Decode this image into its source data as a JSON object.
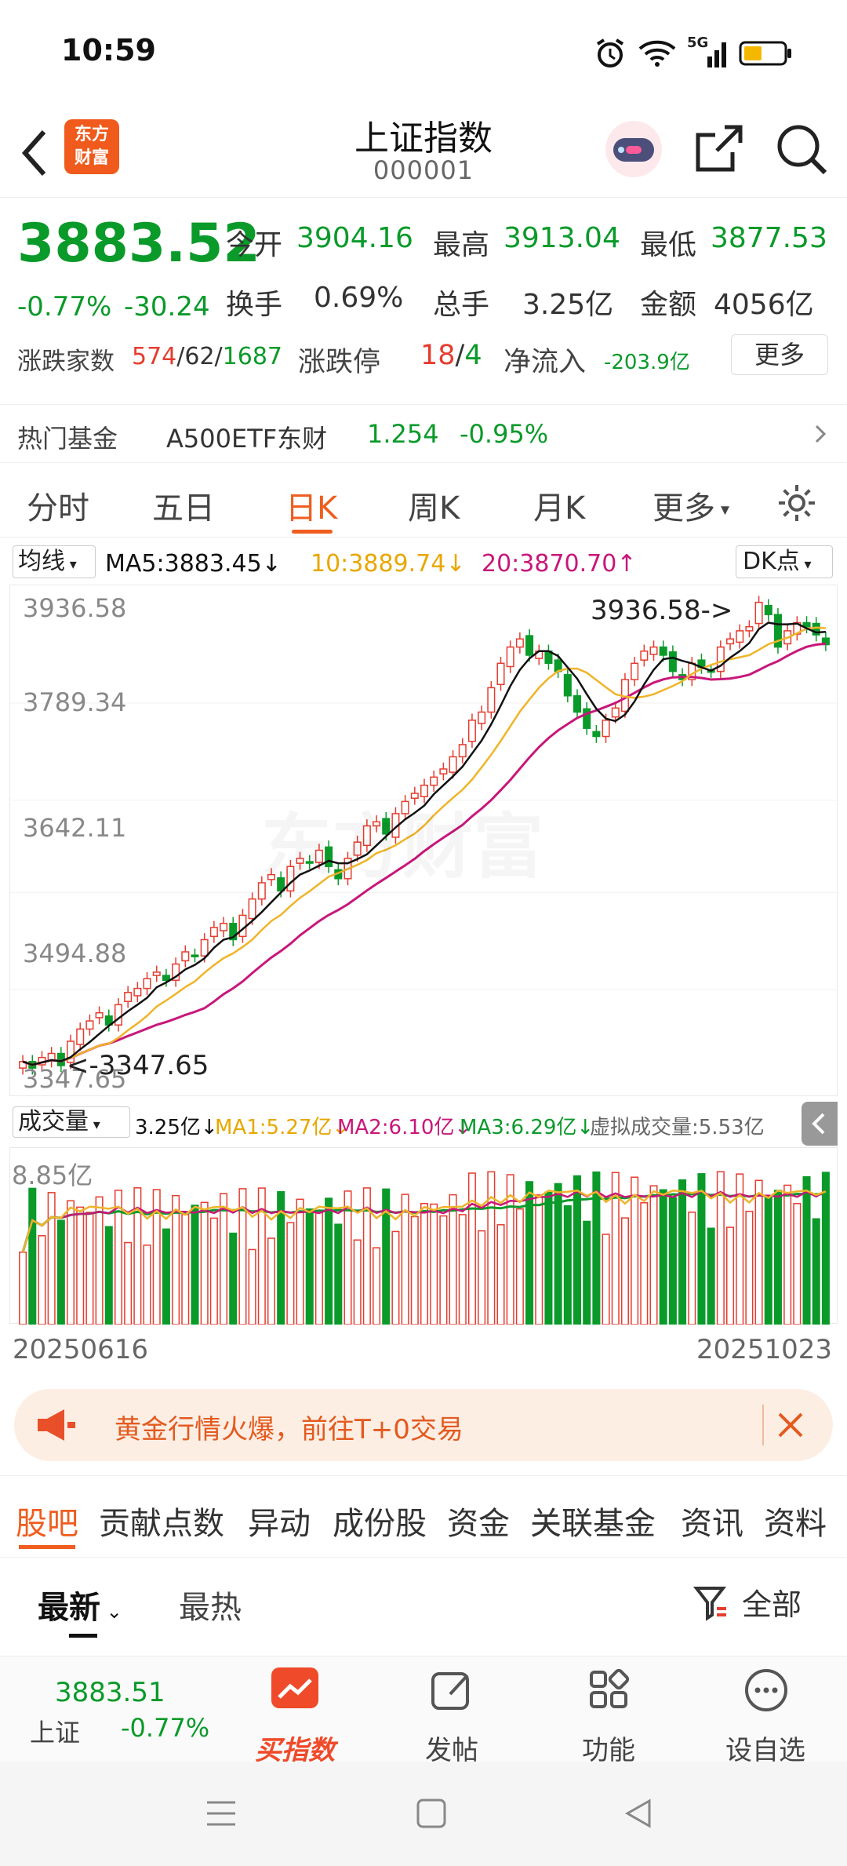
{
  "status_bar": {
    "time": "10:59",
    "network": "5G"
  },
  "header": {
    "title": "上证指数",
    "code": "000001",
    "logo_text": "东方财富",
    "icons": [
      "back-icon",
      "assistant-avatar-icon",
      "share-icon",
      "search-icon"
    ]
  },
  "quote": {
    "last": "3883.52",
    "pct": "-0.77%",
    "chg": "-30.24",
    "open_label": "今开",
    "open": "3904.16",
    "high_label": "最高",
    "high": "3913.04",
    "low_label": "最低",
    "low": "3877.53",
    "turnover_label": "换手",
    "turnover": "0.69%",
    "volume_label": "总手",
    "volume": "3.25亿",
    "amount_label": "金额",
    "amount": "4056亿",
    "breadth_label": "涨跌家数",
    "breadth_up": "574",
    "breadth_flat": "/62/",
    "breadth_down": "1687",
    "limit_label": "涨跌停",
    "limit_up": "18",
    "limit_sep": "/",
    "limit_down": "4",
    "netflow_label": "净流入",
    "netflow": "-203.9亿",
    "more_label": "更多"
  },
  "hot_fund": {
    "label": "热门基金",
    "name": "A500ETF东财",
    "price": "1.254",
    "pct": "-0.95%"
  },
  "period_tabs": [
    "分时",
    "五日",
    "日K",
    "周K",
    "月K",
    "更多"
  ],
  "active_period": "日K",
  "ma_legend": {
    "selector": "均线",
    "ma5": "MA5:3883.45",
    "ma10": "10:3889.74",
    "ma20": "20:3870.70",
    "dk_label": "DK点",
    "arrows": [
      "↓",
      "↓",
      "↑"
    ]
  },
  "price_axis": [
    "3936.58",
    "3789.34",
    "3642.11",
    "3494.88",
    "3347.65"
  ],
  "annotations": {
    "high": "3936.58->",
    "low": "<-3347.65"
  },
  "watermark": "东方财富",
  "vol_legend": {
    "selector": "成交量",
    "vol": "3.25亿↓",
    "ma1": "MA1:5.27亿↓",
    "ma2": "MA2:6.10亿↓",
    "ma3": "MA3:6.29亿↓",
    "virtual": "虚拟成交量:5.53亿",
    "vmax": "8.85亿"
  },
  "dates": {
    "start": "20250616",
    "end": "20251023"
  },
  "colors": {
    "up": "#e63c2f",
    "down": "#0a9a2a",
    "ma5": "#111111",
    "ma10": "#f0b429",
    "ma20": "#c8177a",
    "accent": "#ef5d1f"
  },
  "chart_data": {
    "type": "candlestick",
    "ylim": [
      3347.65,
      3936.58
    ],
    "x_start": "20250616",
    "x_end": "20251023",
    "series_close": [
      3370,
      3362,
      3375,
      3380,
      3365,
      3395,
      3410,
      3420,
      3430,
      3415,
      3440,
      3455,
      3460,
      3472,
      3480,
      3470,
      3490,
      3505,
      3500,
      3520,
      3535,
      3540,
      3520,
      3550,
      3570,
      3590,
      3600,
      3580,
      3610,
      3620,
      3615,
      3630,
      3610,
      3595,
      3620,
      3640,
      3660,
      3665,
      3650,
      3675,
      3690,
      3700,
      3710,
      3720,
      3730,
      3745,
      3760,
      3790,
      3800,
      3830,
      3860,
      3880,
      3890,
      3870,
      3875,
      3860,
      3850,
      3820,
      3800,
      3780,
      3770,
      3790,
      3805,
      3840,
      3860,
      3875,
      3880,
      3870,
      3850,
      3840,
      3860,
      3855,
      3850,
      3880,
      3890,
      3900,
      3905,
      3935,
      3920,
      3880,
      3900,
      3910,
      3905,
      3895,
      3883
    ]
  }
}
